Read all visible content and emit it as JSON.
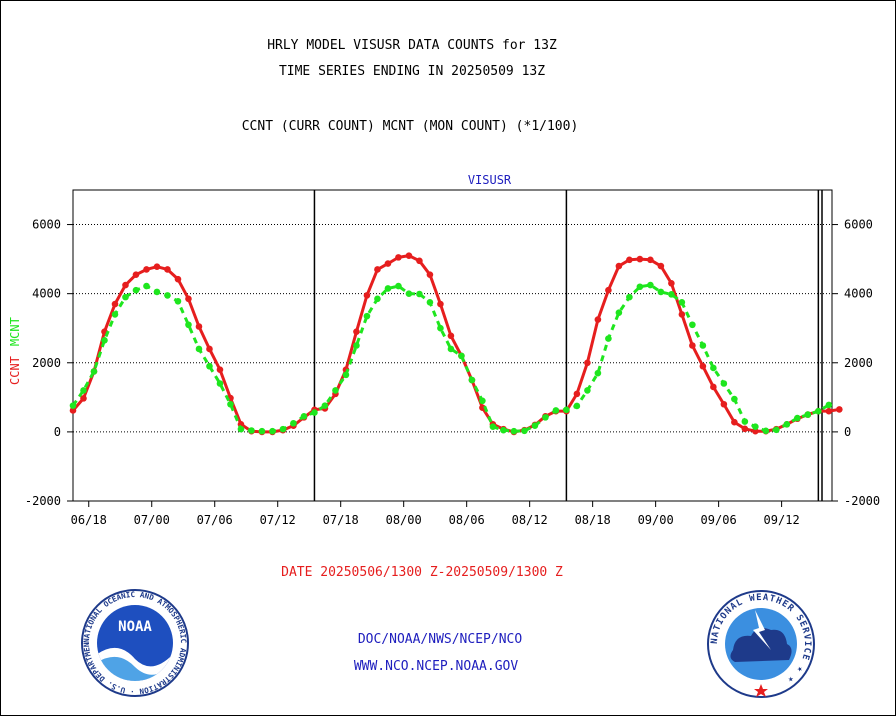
{
  "header": {
    "title_line1": "HRLY MODEL VISUSR DATA COUNTS for 13Z",
    "title_line2": "TIME SERIES ENDING IN 20250509 13Z",
    "subtitle": "CCNT (CURR COUNT) MCNT (MON COUNT) (*1/100)"
  },
  "footer": {
    "date_range": "DATE 20250506/1300 Z-20250509/1300 Z",
    "org_line": "DOC/NOAA/NWS/NCEP/NCO",
    "url_line": "WWW.NCO.NCEP.NOAA.GOV"
  },
  "logos": {
    "noaa_text": "NOAA",
    "noaa_ring": "NATIONAL OCEANIC AND ATMOSPHERIC ADMINISTRATION · U.S. DEPARTMENT OF COMMERCE ·",
    "nws_ring": "NATIONAL WEATHER SERVICE ★ ★"
  },
  "colors": {
    "ccnt": "#e61e1e",
    "mcnt": "#1ee61e",
    "title": "#000000",
    "panel_label": "#1e1ebe",
    "footer_red": "#e61e1e",
    "footer_blue": "#1e1ebe"
  },
  "chart_data": {
    "type": "line",
    "panel_label": "VISUSR",
    "ylabel_parts": [
      "CCNT",
      "MCNT"
    ],
    "ylim": [
      -2000,
      7000
    ],
    "yticks": [
      -2000,
      0,
      2000,
      4000,
      6000
    ],
    "ytick_labels": [
      "-2000",
      "0",
      "2000",
      "4000",
      "6000"
    ],
    "grid": "horizontal dotted at 0, 2000, 4000, 6000",
    "xlim_hours": [
      0,
      72.3
    ],
    "xtick_positions": [
      1.5,
      7.5,
      13.5,
      19.5,
      25.5,
      31.5,
      37.5,
      43.5,
      49.5,
      55.5,
      61.5,
      67.5,
      73.5
    ],
    "xtick_labels": [
      "06/18",
      "07/00",
      "07/06",
      "07/12",
      "07/18",
      "08/00",
      "08/06",
      "08/12",
      "08/18",
      "09/00",
      "09/06",
      "09/12"
    ],
    "day_boundaries": [
      23,
      47,
      71
    ],
    "series": [
      {
        "name": "CCNT",
        "values": [
          620,
          970,
          1750,
          2900,
          3700,
          4250,
          4550,
          4700,
          4780,
          4700,
          4420,
          3850,
          3050,
          2400,
          1800,
          980,
          220,
          20,
          0,
          0,
          50,
          180,
          420,
          640,
          680,
          1100,
          1800,
          2900,
          3950,
          4700,
          4870,
          5050,
          5100,
          4950,
          4550,
          3700,
          2780,
          2200,
          1500,
          700,
          220,
          80,
          0,
          50,
          200,
          450,
          600,
          600,
          1100,
          2000,
          3250,
          4100,
          4800,
          4980,
          5000,
          4980,
          4800,
          4300,
          3400,
          2500,
          1900,
          1300,
          800,
          280,
          90,
          20,
          20,
          80,
          220,
          380,
          500,
          600,
          600,
          650
        ]
      },
      {
        "name": "MCNT",
        "values": [
          760,
          1200,
          1750,
          2650,
          3400,
          3900,
          4100,
          4220,
          4050,
          3950,
          3780,
          3100,
          2400,
          1900,
          1400,
          800,
          80,
          40,
          20,
          20,
          80,
          250,
          450,
          560,
          760,
          1200,
          1650,
          2500,
          3350,
          3850,
          4150,
          4220,
          4000,
          3990,
          3750,
          3000,
          2400,
          2200,
          1500,
          900,
          150,
          50,
          20,
          30,
          180,
          420,
          620,
          640,
          750,
          1200,
          1700,
          2700,
          3450,
          3900,
          4200,
          4250,
          4050,
          3980,
          3750,
          3100,
          2500,
          1850,
          1400,
          950,
          300,
          150,
          30,
          60,
          220,
          400,
          500,
          600,
          780
        ]
      }
    ]
  }
}
